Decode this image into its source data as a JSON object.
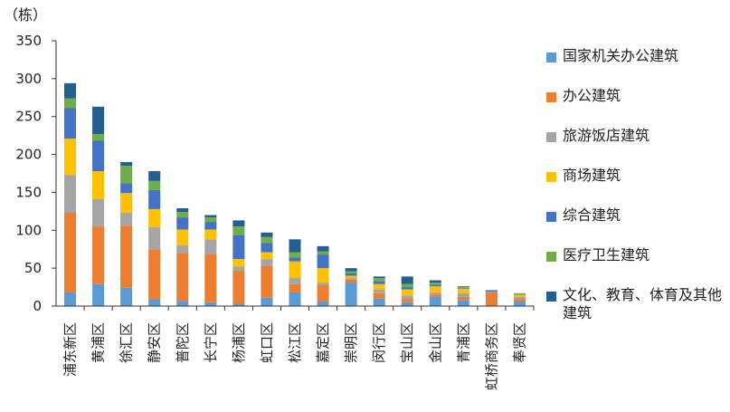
{
  "chart_data": {
    "type": "bar",
    "stacked": true,
    "unit_label": "（栋）",
    "ylim": [
      0,
      350
    ],
    "yticks": [
      0,
      50,
      100,
      150,
      200,
      250,
      300,
      350
    ],
    "grid": false,
    "legend_position": "right",
    "categories": [
      "浦东新区",
      "黄浦区",
      "徐汇区",
      "静安区",
      "普陀区",
      "长宁区",
      "杨浦区",
      "虹口区",
      "松江区",
      "嘉定区",
      "崇明区",
      "闵行区",
      "宝山区",
      "金山区",
      "青浦区",
      "虹桥商务区",
      "奉贤区"
    ],
    "series": [
      {
        "name": "国家机关办公建筑",
        "color": "#5B9BD5",
        "values": [
          18,
          29,
          24,
          9,
          7,
          5,
          3,
          11,
          18,
          6,
          31,
          10,
          5,
          12,
          8,
          0,
          6
        ]
      },
      {
        "name": "办公建筑",
        "color": "#ED7D31",
        "values": [
          105,
          76,
          82,
          66,
          63,
          63,
          43,
          42,
          11,
          22,
          4,
          7,
          4,
          3,
          4,
          18,
          3
        ]
      },
      {
        "name": "旅游饭店建筑",
        "color": "#A5A5A5",
        "values": [
          50,
          36,
          17,
          29,
          10,
          20,
          6,
          9,
          8,
          3,
          2,
          5,
          5,
          3,
          5,
          1,
          3
        ]
      },
      {
        "name": "商场建筑",
        "color": "#FFC000",
        "values": [
          48,
          37,
          26,
          24,
          21,
          13,
          10,
          9,
          22,
          19,
          3,
          7,
          8,
          8,
          6,
          0,
          3
        ]
      },
      {
        "name": "综合建筑",
        "color": "#4472C4",
        "values": [
          40,
          40,
          13,
          25,
          16,
          10,
          32,
          12,
          5,
          18,
          3,
          4,
          3,
          2,
          1,
          2,
          1
        ]
      },
      {
        "name": "医疗卫生建筑",
        "color": "#70AD47",
        "values": [
          13,
          9,
          23,
          12,
          7,
          6,
          11,
          8,
          7,
          4,
          3,
          4,
          4,
          3,
          1,
          0,
          1
        ]
      },
      {
        "name": "文化、教育、体育及其他建筑",
        "color": "#255E91",
        "values": [
          20,
          36,
          5,
          13,
          5,
          3,
          8,
          6,
          17,
          7,
          4,
          2,
          10,
          3,
          1,
          0,
          0
        ]
      }
    ]
  }
}
